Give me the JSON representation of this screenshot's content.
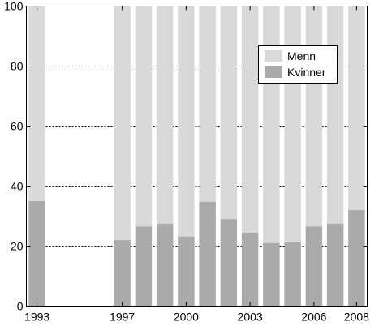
{
  "chart_data": {
    "type": "bar",
    "stacked": true,
    "percent": true,
    "x": [
      1993,
      1994,
      1995,
      1996,
      1997,
      1998,
      1999,
      2000,
      2001,
      2002,
      2003,
      2004,
      2005,
      2006,
      2007,
      2008
    ],
    "x_tick_labels": [
      "1993",
      "1997",
      "2000",
      "2003",
      "2006",
      "2008"
    ],
    "y_tick_labels": [
      "0",
      "20",
      "40",
      "60",
      "80",
      "100"
    ],
    "ylim": [
      0,
      100
    ],
    "series": [
      {
        "name": "Kvinner",
        "color": "#aaaaaa",
        "values": [
          35,
          null,
          null,
          null,
          22,
          26.5,
          27.5,
          23.2,
          34.8,
          29,
          24.5,
          21,
          21.3,
          26.5,
          27.5,
          32
        ]
      },
      {
        "name": "Menn",
        "color": "#d9d9d9",
        "values": [
          65,
          null,
          null,
          null,
          78,
          73.5,
          72.5,
          76.8,
          65.2,
          71,
          75.5,
          79,
          78.7,
          73.5,
          72.5,
          68
        ]
      }
    ],
    "legend_position": "upper-right",
    "grid": "horizontal-dashed",
    "title": "",
    "xlabel": "",
    "ylabel": ""
  }
}
